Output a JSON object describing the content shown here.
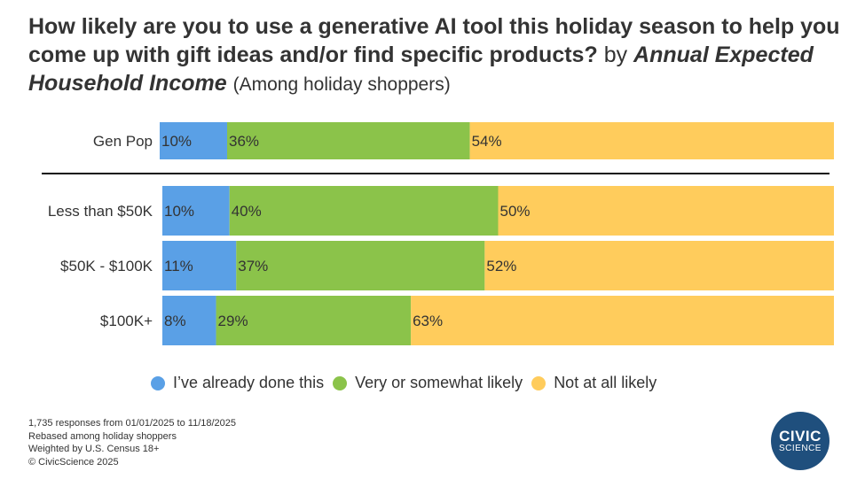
{
  "title": {
    "main": "How likely are you to use a generative AI tool this holiday season to help you come up with gift ideas and/or find specific products?",
    "by": "by",
    "dimension": "Annual Expected Household Income",
    "subset": "(Among holiday shoppers)"
  },
  "chart_data": {
    "type": "bar",
    "orientation": "horizontal",
    "stacked": true,
    "normalized_percent": true,
    "categories": [
      "Gen Pop",
      "Less than $50K",
      "$50K - $100K",
      "$100K+"
    ],
    "series": [
      {
        "name": "I've already done this",
        "color": "#5aa0e6",
        "values": [
          10,
          10,
          11,
          8
        ],
        "labels": [
          "10%",
          "10%",
          "11%",
          "8%"
        ]
      },
      {
        "name": "Very or somewhat likely",
        "color": "#8bc34a",
        "values": [
          36,
          40,
          37,
          29
        ],
        "labels": [
          "36%",
          "40%",
          "37%",
          "29%"
        ]
      },
      {
        "name": "Not at all likely",
        "color": "#ffcc5c",
        "values": [
          54,
          50,
          52,
          63
        ],
        "labels": [
          "54%",
          "50%",
          "52%",
          "63%"
        ]
      }
    ],
    "divider_after_category": "Gen Pop",
    "legend_position": "bottom",
    "grid": false
  },
  "legend": {
    "items": [
      {
        "label": "I’ve already done this",
        "color": "#5aa0e6"
      },
      {
        "label": "Very or somewhat likely",
        "color": "#8bc34a"
      },
      {
        "label": "Not at all likely",
        "color": "#ffcc5c"
      }
    ]
  },
  "footnotes": {
    "responses": "1,735 responses from 01/01/2025 to 11/18/2025",
    "rebased": "Rebased among holiday shoppers",
    "weighted": "Weighted by U.S. Census 18+",
    "copyright": "© CivicScience 2025"
  },
  "logo": {
    "line1": "CIVIC",
    "line2": "SCIENCE",
    "color": "#1f4f7d"
  }
}
